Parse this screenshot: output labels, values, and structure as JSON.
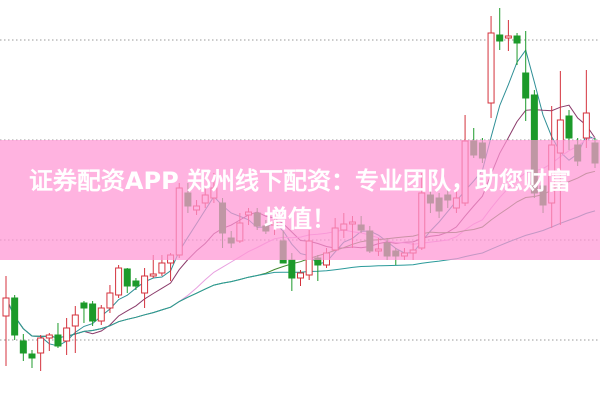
{
  "banner": {
    "line1": "证券配资APP 郑州线下配资：专业团队，助您财富",
    "line2": "增值！"
  },
  "colors": {
    "up": "#d4323c",
    "down": "#1c9a2a",
    "banner": "#ff96d4",
    "grid": "#9a9a9a",
    "ma": [
      "#2e8f96",
      "#8a3a6a",
      "#e8a0e0",
      "#3f8a2e",
      "#2a9a9a"
    ]
  },
  "chart_data": {
    "type": "candlestick",
    "title": "",
    "xlabel": "",
    "ylabel": "",
    "ylim": [
      4,
      44
    ],
    "grid": true,
    "grid_style": "dotted horizontal",
    "gridlines": [
      10,
      20,
      30,
      40
    ],
    "moving_averages": [
      5,
      10,
      20,
      30,
      60
    ],
    "candles": [
      [
        12.4,
        16.4,
        7.4,
        14.2
      ],
      [
        14.2,
        14.5,
        10.0,
        10.5
      ],
      [
        9.9,
        10.6,
        7.9,
        8.7
      ],
      [
        8.6,
        9.0,
        7.2,
        8.2
      ],
      [
        8.7,
        10.5,
        6.9,
        10.2
      ],
      [
        10.2,
        10.7,
        8.9,
        10.5
      ],
      [
        10.5,
        11.7,
        9.2,
        9.4
      ],
      [
        9.9,
        12.2,
        8.5,
        11.2
      ],
      [
        11.4,
        13.4,
        8.7,
        12.5
      ],
      [
        13.7,
        13.9,
        11.7,
        13.2
      ],
      [
        13.6,
        13.9,
        11.4,
        11.9
      ],
      [
        11.9,
        13.5,
        11.5,
        13.2
      ],
      [
        13.2,
        15.5,
        12.7,
        14.7
      ],
      [
        14.5,
        17.5,
        14.2,
        17.2
      ],
      [
        17.1,
        17.2,
        14.7,
        15.4
      ],
      [
        15.9,
        16.2,
        15.0,
        15.4
      ],
      [
        14.7,
        17.2,
        13.2,
        16.4
      ],
      [
        16.4,
        18.5,
        16.2,
        16.6
      ],
      [
        16.7,
        18.5,
        16.4,
        17.7
      ],
      [
        17.7,
        18.7,
        15.9,
        18.5
      ],
      [
        18.5,
        25.7,
        18.2,
        25.2
      ],
      [
        24.7,
        25.7,
        22.7,
        23.4
      ],
      [
        23.0,
        24.0,
        22.5,
        23.4
      ],
      [
        23.7,
        25.2,
        23.2,
        24.5
      ],
      [
        24.2,
        26.7,
        23.7,
        25.2
      ],
      [
        23.7,
        24.2,
        19.2,
        20.7
      ],
      [
        20.2,
        20.9,
        19.2,
        19.7
      ],
      [
        19.9,
        22.7,
        19.7,
        21.7
      ],
      [
        22.5,
        23.2,
        21.5,
        22.8
      ],
      [
        22.7,
        23.2,
        21.0,
        21.4
      ],
      [
        21.4,
        22.0,
        20.6,
        20.9
      ],
      [
        21.5,
        22.5,
        20.5,
        21.7
      ],
      [
        19.9,
        20.9,
        17.7,
        17.7
      ],
      [
        18.0,
        18.7,
        14.9,
        16.2
      ],
      [
        16.2,
        17.0,
        15.4,
        16.7
      ],
      [
        16.5,
        21.0,
        16.0,
        19.9
      ],
      [
        18.2,
        18.5,
        15.9,
        17.5
      ],
      [
        17.5,
        19.2,
        17.2,
        18.7
      ],
      [
        19.0,
        22.2,
        18.9,
        21.2
      ],
      [
        21.0,
        22.7,
        20.2,
        21.6
      ],
      [
        21.6,
        22.4,
        19.2,
        21.8
      ],
      [
        21.5,
        22.4,
        20.7,
        21.0
      ],
      [
        20.9,
        21.4,
        18.7,
        18.9
      ],
      [
        18.9,
        20.2,
        18.4,
        19.1
      ],
      [
        19.7,
        20.2,
        18.0,
        18.4
      ],
      [
        18.9,
        19.2,
        17.5,
        18.4
      ],
      [
        18.4,
        19.2,
        18.0,
        18.7
      ],
      [
        18.7,
        19.7,
        18.0,
        19.0
      ],
      [
        19.2,
        26.7,
        19.0,
        24.7
      ],
      [
        24.5,
        25.2,
        22.7,
        23.7
      ],
      [
        24.2,
        24.7,
        22.2,
        22.9
      ],
      [
        24.5,
        25.2,
        23.2,
        24.0
      ],
      [
        23.2,
        25.0,
        22.7,
        24.2
      ],
      [
        23.7,
        32.5,
        23.4,
        29.9
      ],
      [
        29.9,
        31.2,
        28.2,
        28.5
      ],
      [
        29.7,
        30.2,
        27.7,
        28.2
      ],
      [
        33.7,
        42.4,
        32.2,
        40.7
      ],
      [
        40.5,
        43.2,
        39.0,
        39.9
      ],
      [
        40.2,
        42.0,
        38.9,
        40.4
      ],
      [
        40.4,
        40.7,
        37.5,
        39.7
      ],
      [
        36.7,
        40.9,
        31.9,
        34.2
      ],
      [
        34.5,
        35.0,
        24.2,
        24.7
      ],
      [
        25.4,
        26.0,
        22.7,
        23.5
      ],
      [
        23.7,
        33.4,
        21.2,
        29.5
      ],
      [
        28.7,
        36.9,
        21.5,
        32.0
      ],
      [
        32.4,
        33.0,
        29.0,
        30.2
      ],
      [
        29.5,
        30.2,
        27.4,
        27.9
      ],
      [
        30.2,
        37.0,
        29.2,
        32.7
      ],
      [
        29.7,
        30.2,
        27.2,
        27.7
      ]
    ]
  }
}
